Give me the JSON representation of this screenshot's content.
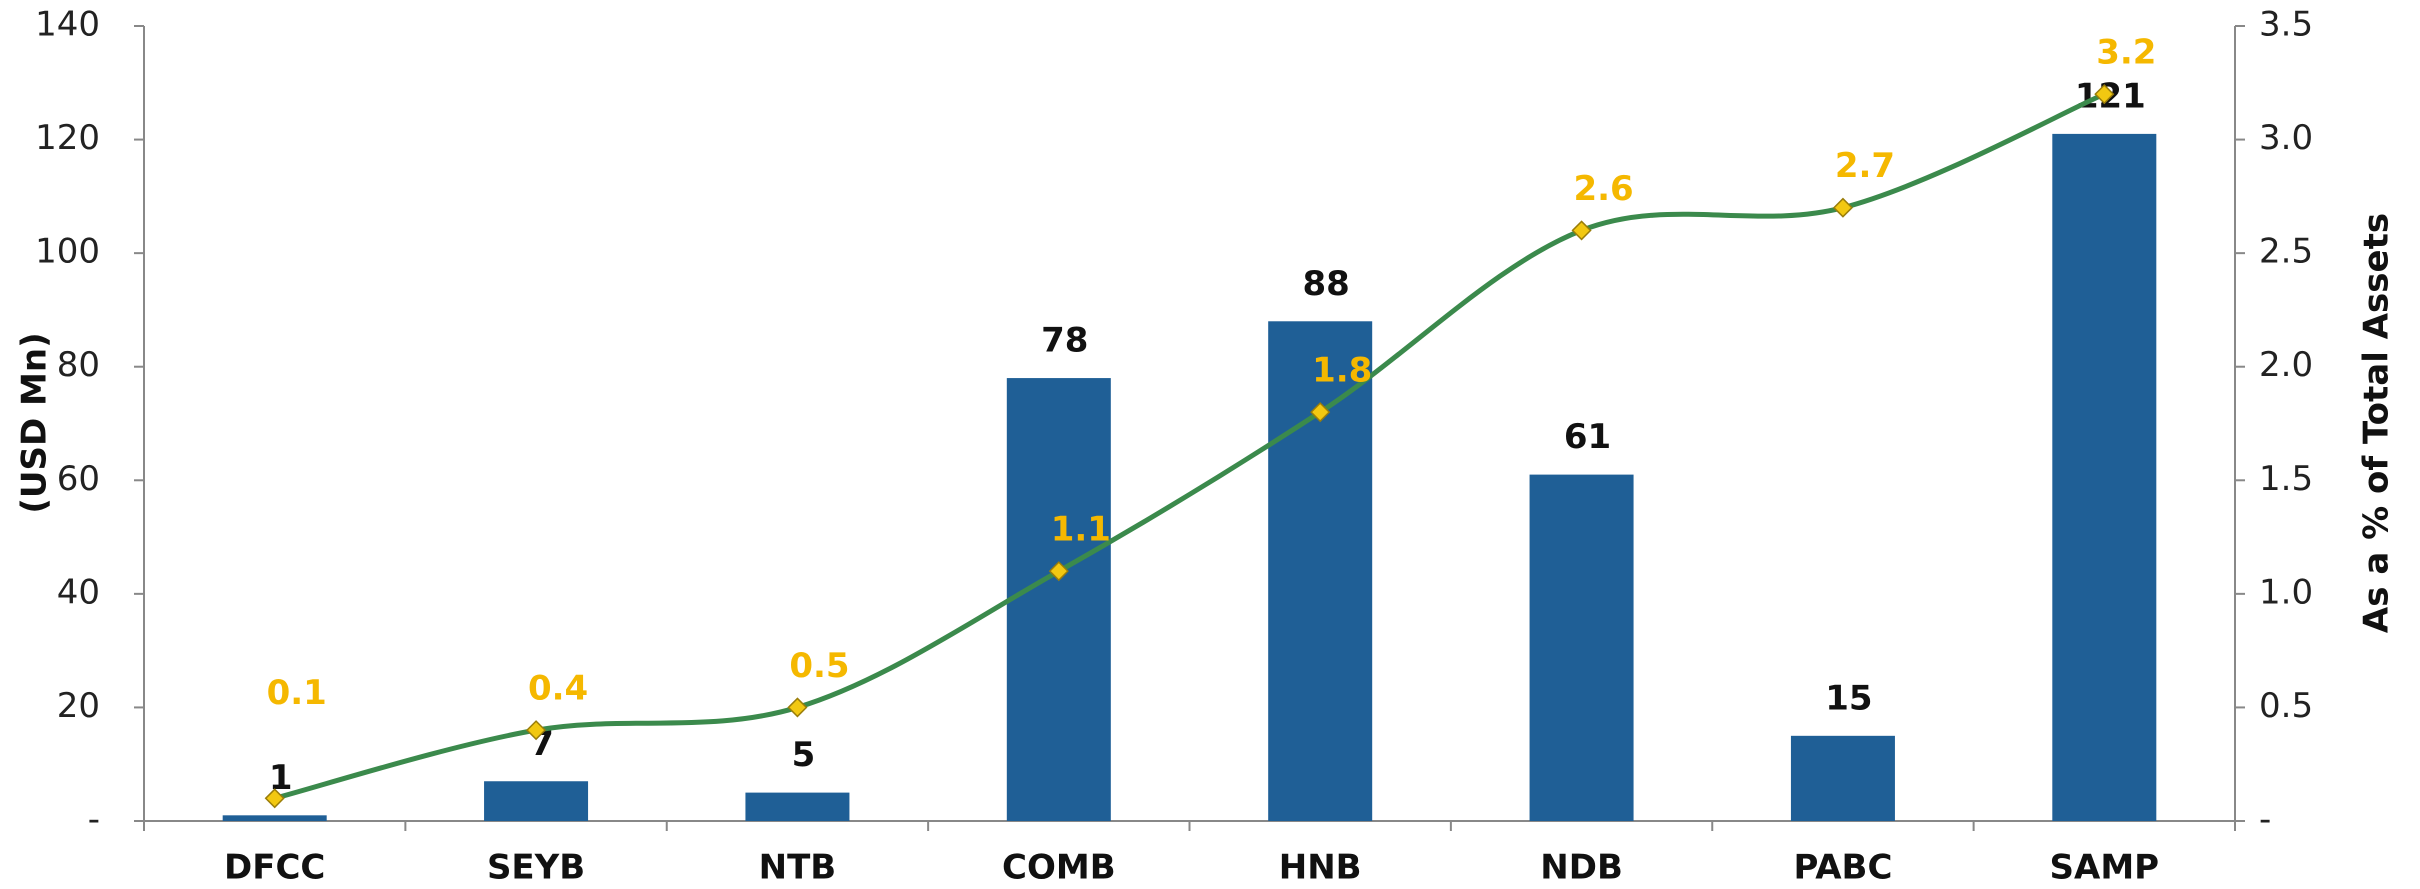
{
  "chart_data": {
    "type": "bar",
    "categories": [
      "DFCC",
      "SEYB",
      "NTB",
      "COMB",
      "HNB",
      "NDB",
      "PABC",
      "SAMP"
    ],
    "series": [
      {
        "type": "bar",
        "color": "#1f5f96",
        "values": [
          1,
          7,
          5,
          78,
          88,
          61,
          15,
          121
        ]
      },
      {
        "type": "line",
        "axis": "y2",
        "color": "#3b8a4c",
        "marker_color": "#f2c811",
        "label_color": "#f5b800",
        "values": [
          0.1,
          0.4,
          0.5,
          1.1,
          1.8,
          2.6,
          2.7,
          3.2
        ]
      }
    ],
    "ylabel": "(USD Mn)",
    "y2label": "As a % of Total Assets",
    "ylim": [
      0,
      140
    ],
    "yticks": [
      {
        "value": 0,
        "label": "-"
      },
      20,
      40,
      60,
      80,
      100,
      120,
      140
    ],
    "y2lim": [
      0,
      3.5
    ],
    "y2ticks": [
      {
        "value": 0,
        "label": "-"
      },
      0.5,
      {
        "value": 1,
        "label": "1.0"
      },
      1.5,
      {
        "value": 2,
        "label": "2.0"
      },
      2.5,
      {
        "value": 3,
        "label": "3.0"
      },
      3.5
    ]
  }
}
